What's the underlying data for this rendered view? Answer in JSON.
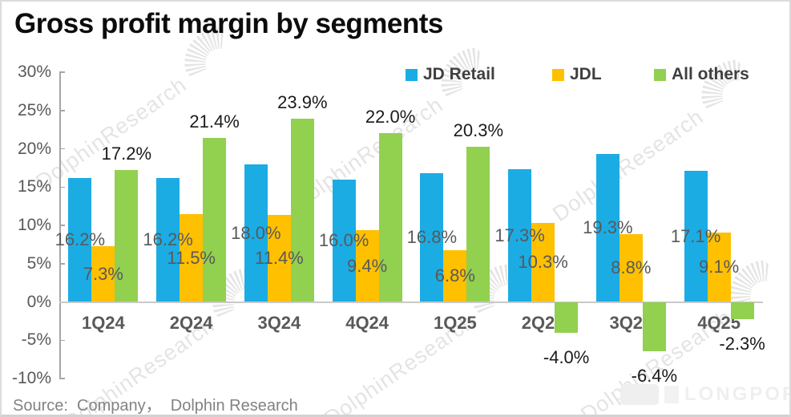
{
  "chart_data": {
    "type": "bar",
    "title": "Gross profit margin by segments",
    "categories": [
      "1Q24",
      "2Q24",
      "3Q24",
      "4Q24",
      "1Q25",
      "2Q25",
      "3Q25",
      "4Q25"
    ],
    "series": [
      {
        "name": "JD Retail",
        "color": "#1BACE4",
        "label_position": "center",
        "values": [
          16.2,
          16.2,
          18.0,
          16.0,
          16.8,
          17.3,
          19.3,
          17.1
        ]
      },
      {
        "name": "JDL",
        "color": "#FFC000",
        "label_position": "center",
        "values": [
          7.3,
          11.5,
          11.4,
          9.4,
          6.8,
          10.3,
          8.8,
          9.1
        ]
      },
      {
        "name": "All others",
        "color": "#92D050",
        "label_position": "outside",
        "values": [
          17.2,
          21.4,
          23.9,
          22.0,
          20.3,
          -4.0,
          -6.4,
          -2.3
        ]
      }
    ],
    "ylim": [
      -10,
      30
    ],
    "ytick_step": 5,
    "ytick_labels": [
      "30%",
      "25%",
      "20%",
      "15%",
      "10%",
      "5%",
      "0%",
      "-5%",
      "-10%"
    ],
    "label_format": "percent-1dp",
    "legend_position": "top",
    "grid": "zero-line-only",
    "colors": {
      "axis": "#a6a6a6",
      "zero_line": "#c9c9c9",
      "tick_text": "#595959",
      "center_label": "#595959",
      "outside_label": "#1a1a1a"
    }
  },
  "source": {
    "text": "Source:  Company，  Dolphin Research"
  },
  "watermark": {
    "text": "DolphinResearch"
  },
  "branding": {
    "logo_text": "LONGPORT"
  }
}
